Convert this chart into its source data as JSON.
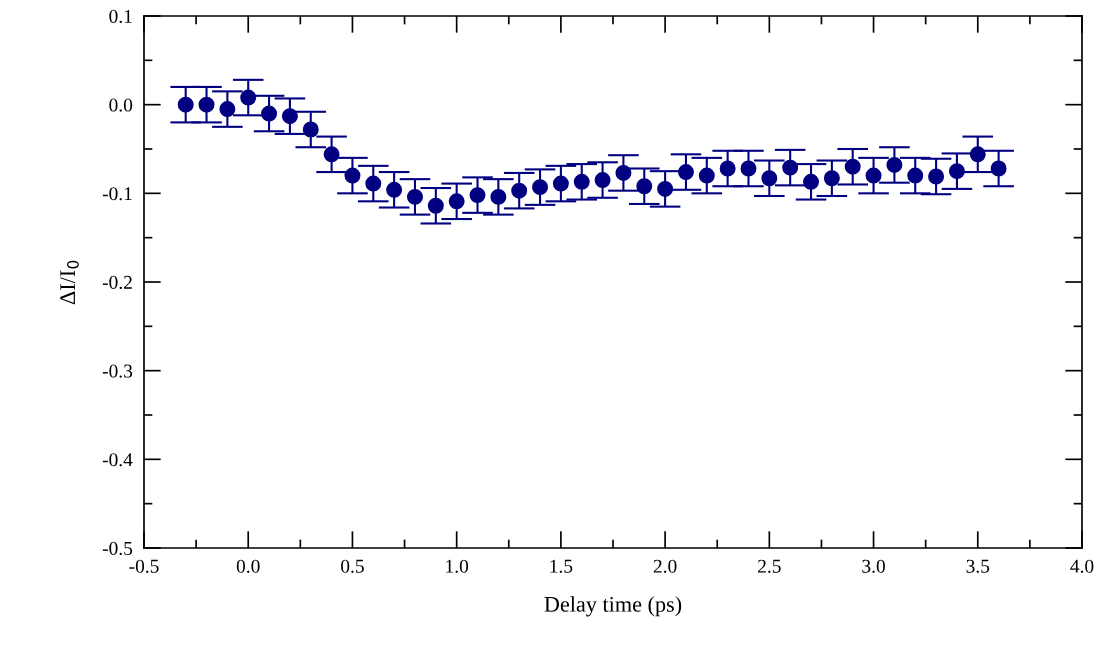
{
  "chart_data": {
    "type": "scatter",
    "xlabel": "Delay time (ps)",
    "ylabel": "ΔI/I$_{0}$",
    "x": [
      -0.3,
      -0.2,
      -0.1,
      0.0,
      0.1,
      0.2,
      0.3,
      0.4,
      0.5,
      0.6,
      0.7,
      0.8,
      0.9,
      1.0,
      1.1,
      1.2,
      1.3,
      1.4,
      1.5,
      1.6,
      1.7,
      1.8,
      1.9,
      2.0,
      2.1,
      2.2,
      2.3,
      2.4,
      2.5,
      2.6,
      2.7,
      2.8,
      2.9,
      3.0,
      3.1,
      3.2,
      3.3,
      3.4,
      3.5,
      3.6
    ],
    "series": [
      {
        "color": "#000080",
        "values": [
          0.0,
          0.0,
          -0.005,
          0.008,
          -0.01,
          -0.013,
          -0.028,
          -0.056,
          -0.08,
          -0.089,
          -0.096,
          -0.104,
          -0.114,
          -0.109,
          -0.102,
          -0.104,
          -0.097,
          -0.093,
          -0.089,
          -0.087,
          -0.085,
          -0.077,
          -0.092,
          -0.095,
          -0.076,
          -0.08,
          -0.072,
          -0.072,
          -0.083,
          -0.071,
          -0.087,
          -0.083,
          -0.07,
          -0.08,
          -0.068,
          -0.08,
          -0.081,
          -0.075,
          -0.056,
          -0.072
        ],
        "errors": [
          0.02,
          0.02,
          0.02,
          0.02,
          0.02,
          0.02,
          0.02,
          0.02,
          0.02,
          0.02,
          0.02,
          0.02,
          0.02,
          0.02,
          0.02,
          0.02,
          0.02,
          0.02,
          0.02,
          0.02,
          0.02,
          0.02,
          0.02,
          0.02,
          0.02,
          0.02,
          0.02,
          0.02,
          0.02,
          0.02,
          0.02,
          0.02,
          0.02,
          0.02,
          0.02,
          0.02,
          0.02,
          0.02,
          0.02,
          0.02
        ]
      }
    ],
    "marker": "circle",
    "xlim": [
      -0.5,
      4.0
    ],
    "ylim": [
      -0.5,
      0.1
    ],
    "xticks": [
      {
        "value": -0.5,
        "label": "-0.5"
      },
      {
        "value": -0.25,
        "label": null
      },
      {
        "value": 0.0,
        "label": "0.0"
      },
      {
        "value": 0.25,
        "label": null
      },
      {
        "value": 0.5,
        "label": "0.5"
      },
      {
        "value": 0.75,
        "label": null
      },
      {
        "value": 1.0,
        "label": "1.0"
      },
      {
        "value": 1.25,
        "label": null
      },
      {
        "value": 1.5,
        "label": "1.5"
      },
      {
        "value": 1.75,
        "label": null
      },
      {
        "value": 2.0,
        "label": "2.0"
      },
      {
        "value": 2.25,
        "label": null
      },
      {
        "value": 2.5,
        "label": "2.5"
      },
      {
        "value": 2.75,
        "label": null
      },
      {
        "value": 3.0,
        "label": "3.0"
      },
      {
        "value": 3.25,
        "label": null
      },
      {
        "value": 3.5,
        "label": "3.5"
      },
      {
        "value": 3.75,
        "label": null
      },
      {
        "value": 4.0,
        "label": "4.0"
      }
    ],
    "yticks": [
      {
        "value": -0.5,
        "label": "-0.5"
      },
      {
        "value": -0.45,
        "label": null
      },
      {
        "value": -0.4,
        "label": "-0.4"
      },
      {
        "value": -0.35,
        "label": null
      },
      {
        "value": -0.3,
        "label": "-0.3"
      },
      {
        "value": -0.25,
        "label": null
      },
      {
        "value": -0.2,
        "label": "-0.2"
      },
      {
        "value": -0.15,
        "label": null
      },
      {
        "value": -0.1,
        "label": "-0.1"
      },
      {
        "value": -0.05,
        "label": null
      },
      {
        "value": 0.0,
        "label": "0.0"
      },
      {
        "value": 0.05,
        "label": null
      },
      {
        "value": 0.1,
        "label": "0.1"
      }
    ],
    "grid": false,
    "legend": false
  }
}
